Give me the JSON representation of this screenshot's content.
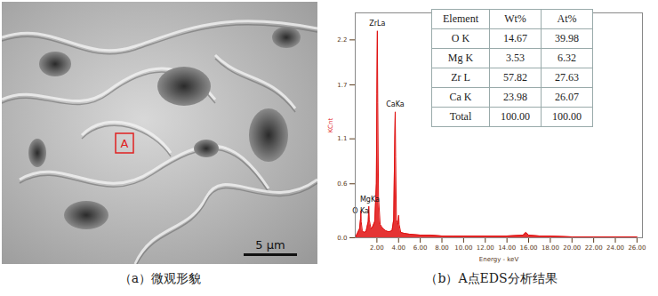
{
  "micrograph": {
    "point_label": "A",
    "scale_bar": "5 μm",
    "caption": "（a）微观形貌"
  },
  "chart_data": {
    "type": "area",
    "caption": "（b）A点EDS分析结果",
    "xlabel": "Energy - keV",
    "ylabel": "KCnt",
    "color": "#e01010",
    "x": [
      0,
      0.2,
      0.4,
      0.5,
      0.52,
      0.55,
      0.65,
      0.8,
      1.0,
      1.2,
      1.25,
      1.3,
      1.45,
      1.6,
      1.8,
      1.95,
      2.0,
      2.04,
      2.08,
      2.15,
      2.3,
      2.45,
      2.6,
      2.8,
      3.0,
      3.2,
      3.4,
      3.55,
      3.65,
      3.69,
      3.73,
      3.8,
      3.95,
      4.01,
      4.05,
      4.2,
      4.5,
      5,
      6,
      7,
      8,
      9,
      10,
      12,
      14,
      15.5,
      15.75,
      16,
      17,
      18,
      20,
      22,
      24,
      26
    ],
    "values": [
      0,
      0.05,
      0.1,
      0.22,
      0.3,
      0.18,
      0.08,
      0.06,
      0.07,
      0.18,
      0.35,
      0.2,
      0.1,
      0.12,
      0.18,
      0.6,
      1.6,
      2.3,
      1.5,
      0.45,
      0.15,
      0.12,
      0.1,
      0.08,
      0.07,
      0.07,
      0.08,
      0.2,
      1.1,
      1.4,
      0.9,
      0.2,
      0.15,
      0.25,
      0.15,
      0.06,
      0.05,
      0.04,
      0.03,
      0.03,
      0.02,
      0.02,
      0.02,
      0.02,
      0.02,
      0.03,
      0.06,
      0.03,
      0.02,
      0.02,
      0.01,
      0.01,
      0.01,
      0.01
    ],
    "xlim": [
      0,
      26.5
    ],
    "xticks": [
      {
        "value": 2,
        "label": "2.00"
      },
      {
        "value": 4,
        "label": "4.00"
      },
      {
        "value": 6,
        "label": "6.00"
      },
      {
        "value": 8,
        "label": "8.00"
      },
      {
        "value": 10,
        "label": "10.00"
      },
      {
        "value": 12,
        "label": "12.00"
      },
      {
        "value": 14,
        "label": "14.00"
      },
      {
        "value": 16,
        "label": "16.00"
      },
      {
        "value": 18,
        "label": "18.00"
      },
      {
        "value": 20,
        "label": "20.00"
      },
      {
        "value": 22,
        "label": "22.00"
      },
      {
        "value": 24,
        "label": "24.00"
      },
      {
        "value": 26,
        "label": "26.00"
      }
    ],
    "ylim": [
      0,
      2.5
    ],
    "yticks": [
      {
        "value": 0,
        "label": "0.0"
      },
      0.6,
      1.1,
      1.7,
      2.2
    ],
    "annotations": [
      {
        "text": "ZrLa",
        "x": 2.04,
        "y": 2.33
      },
      {
        "text": "CaKa",
        "x": 3.69,
        "y": 1.43
      },
      {
        "text": "MgKa",
        "x": 1.35,
        "y": 0.38
      },
      {
        "text": "O Ka",
        "x": 0.5,
        "y": 0.25
      }
    ]
  },
  "eds_table": {
    "header": [
      "Element",
      "Wt%",
      "At%"
    ],
    "rows": [
      [
        "O K",
        "14.67",
        "39.98"
      ],
      [
        "Mg K",
        "3.53",
        "6.32"
      ],
      [
        "Zr L",
        "57.82",
        "27.63"
      ],
      [
        "Ca K",
        "23.98",
        "26.07"
      ],
      [
        "Total",
        "100.00",
        "100.00"
      ]
    ]
  }
}
